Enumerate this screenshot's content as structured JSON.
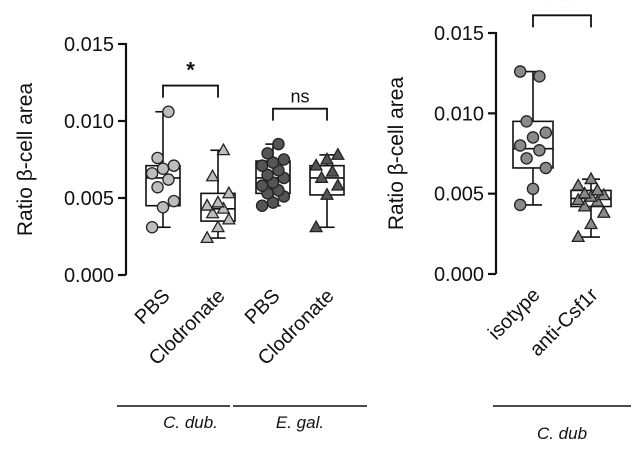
{
  "chart_data": [
    {
      "type": "box",
      "ylabel": "Ratio β-cell area",
      "ylim": [
        0,
        0.015
      ],
      "yticks": [
        "0.000",
        "0.005",
        "0.010",
        "0.015"
      ],
      "categories": [
        "PBS",
        "Clodronate",
        "PBS",
        "Clodronate"
      ],
      "groups": [
        {
          "label": "C. dub.",
          "categories": [
            0,
            1
          ]
        },
        {
          "label": "E. gal.",
          "categories": [
            2,
            3
          ]
        }
      ],
      "series": [
        {
          "category": "PBS",
          "marker": "circle",
          "fill": "#bdbdbd",
          "box": {
            "min": 0.0031,
            "q1": 0.0045,
            "median": 0.0063,
            "q3": 0.0071,
            "max": 0.0106
          },
          "points": [
            0.0031,
            0.0044,
            0.0048,
            0.0057,
            0.0062,
            0.0066,
            0.0069,
            0.0071,
            0.0076,
            0.0106
          ]
        },
        {
          "category": "Clodronate",
          "marker": "triangle",
          "fill": "#bdbdbd",
          "box": {
            "min": 0.0024,
            "q1": 0.0035,
            "median": 0.0043,
            "q3": 0.0053,
            "max": 0.0081
          },
          "points": [
            0.0024,
            0.0031,
            0.0036,
            0.004,
            0.0043,
            0.0045,
            0.0047,
            0.0053,
            0.0064,
            0.0081
          ]
        },
        {
          "category": "PBS",
          "marker": "circle",
          "fill": "#555555",
          "box": {
            "min": 0.0045,
            "q1": 0.0053,
            "median": 0.0063,
            "q3": 0.0074,
            "max": 0.0085
          },
          "points": [
            0.0045,
            0.0047,
            0.0051,
            0.0053,
            0.0055,
            0.0058,
            0.006,
            0.0063,
            0.0065,
            0.0068,
            0.0071,
            0.0073,
            0.0075,
            0.0079,
            0.0085
          ]
        },
        {
          "category": "Clodronate",
          "marker": "triangle",
          "fill": "#555555",
          "box": {
            "min": 0.0031,
            "q1": 0.0052,
            "median": 0.0063,
            "q3": 0.0071,
            "max": 0.0078
          },
          "points": [
            0.0031,
            0.0052,
            0.0058,
            0.0063,
            0.0067,
            0.0071,
            0.0075,
            0.0078
          ]
        }
      ],
      "significance": [
        {
          "from": 0,
          "to": 1,
          "label": "*",
          "y": 0.0123
        },
        {
          "from": 2,
          "to": 3,
          "label": "ns",
          "y": 0.0108
        }
      ]
    },
    {
      "type": "box",
      "ylabel": "Ratio β-cell area",
      "ylim": [
        0,
        0.015
      ],
      "yticks": [
        "0.000",
        "0.005",
        "0.010",
        "0.015"
      ],
      "categories": [
        "isotype",
        "anti-Csf1r"
      ],
      "groups": [
        {
          "label": "C. dub",
          "categories": [
            0,
            1
          ]
        }
      ],
      "series": [
        {
          "category": "isotype",
          "marker": "circle",
          "fill": "#8a8a8a",
          "box": {
            "min": 0.0043,
            "q1": 0.0066,
            "median": 0.0078,
            "q3": 0.0095,
            "max": 0.0126
          },
          "points": [
            0.0043,
            0.0053,
            0.0066,
            0.0072,
            0.0077,
            0.008,
            0.0085,
            0.0088,
            0.0095,
            0.0123,
            0.0126
          ]
        },
        {
          "category": "anti-Csf1r",
          "marker": "triangle",
          "fill": "#8a8a8a",
          "box": {
            "min": 0.0023,
            "q1": 0.0042,
            "median": 0.0047,
            "q3": 0.0052,
            "max": 0.0059
          },
          "points": [
            0.0023,
            0.0031,
            0.0038,
            0.0042,
            0.0045,
            0.0046,
            0.0048,
            0.0049,
            0.005,
            0.0052,
            0.0055,
            0.0059
          ]
        }
      ],
      "significance": [
        {
          "from": 0,
          "to": 1,
          "label": "***",
          "y": 0.0161
        }
      ]
    }
  ]
}
